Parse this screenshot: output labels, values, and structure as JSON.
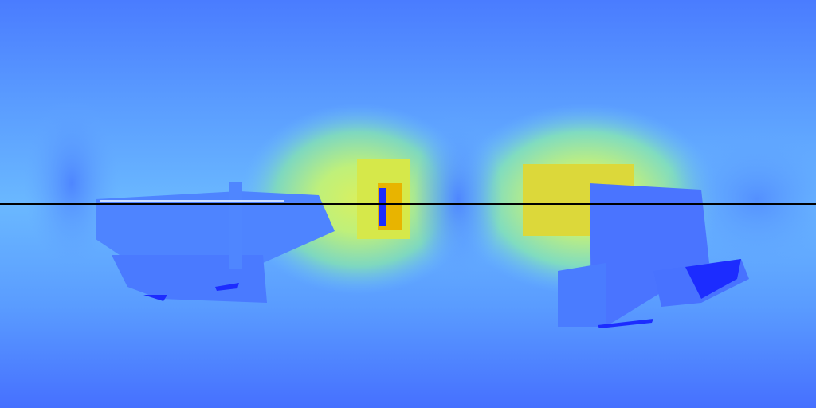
{
  "image": {
    "kind": "equirectangular-depth-map",
    "colormap": "jet",
    "overlay": "horizontal-line",
    "colors": {
      "near": "#4575ff",
      "mid": "#5aa8ff",
      "far_green": "#b8f27a",
      "farthest_orange": "#e8b200",
      "object_deep_blue": "#1c2cff",
      "horizon_line": "#000000"
    }
  }
}
